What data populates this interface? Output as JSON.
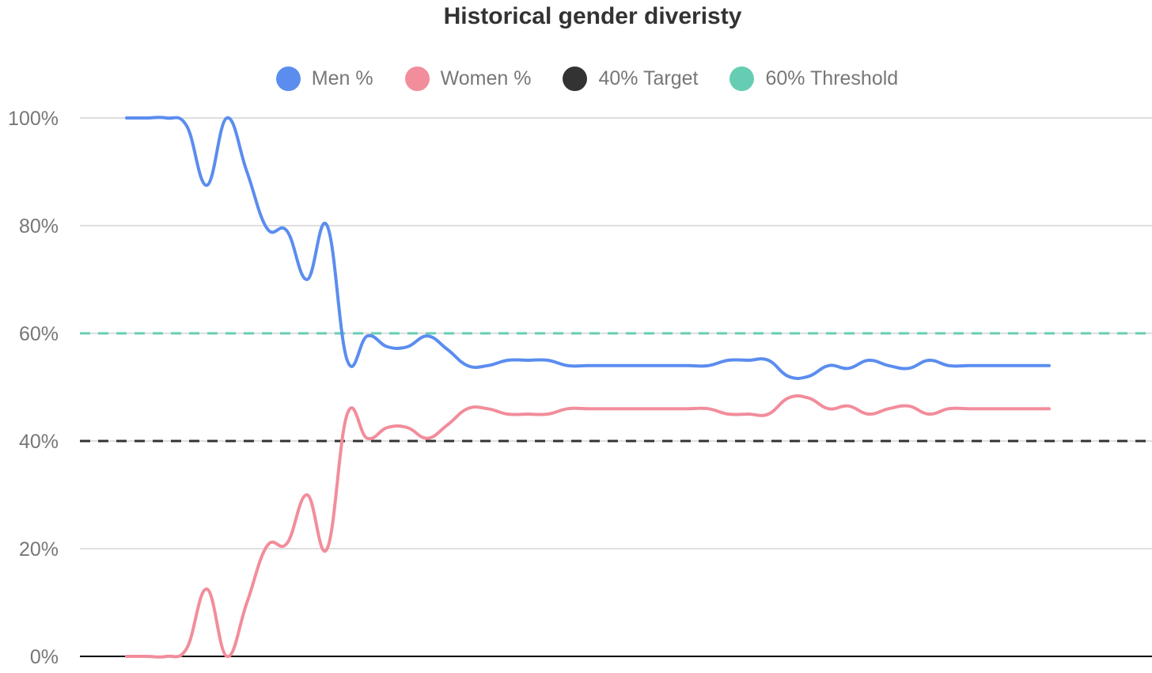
{
  "chart_data": {
    "type": "line",
    "title": "Historical gender diveristy",
    "xlabel": "",
    "ylabel": "",
    "ylim": [
      0,
      100
    ],
    "yticks": [
      0,
      20,
      40,
      60,
      80,
      100
    ],
    "ytick_labels": [
      "0%",
      "20%",
      "40%",
      "60%",
      "80%",
      "100%"
    ],
    "grid": true,
    "legend_position": "top-center",
    "x": [
      0,
      1,
      2,
      3,
      4,
      5,
      6,
      7,
      8,
      9,
      10,
      11,
      12,
      13,
      14,
      15,
      16,
      17,
      18,
      19,
      20,
      21,
      22,
      23,
      24,
      25,
      26,
      27,
      28,
      29,
      30,
      31,
      32,
      33,
      34,
      35,
      36,
      37,
      38,
      39,
      40,
      41,
      42,
      43,
      44,
      45,
      46
    ],
    "series": [
      {
        "name": "Men %",
        "color": "#5b8def",
        "values": [
          100,
          100,
          100,
          98.5,
          87.5,
          100,
          90,
          79.5,
          79,
          70,
          80,
          55,
          59.5,
          57.5,
          57.5,
          59.5,
          57,
          54,
          54,
          55,
          55,
          55,
          54,
          54,
          54,
          54,
          54,
          54,
          54,
          54,
          55,
          55,
          55,
          52,
          52,
          54,
          53.5,
          55,
          54,
          53.5,
          55,
          54,
          54,
          54,
          54,
          54,
          54
        ]
      },
      {
        "name": "Women %",
        "color": "#f28d9b",
        "values": [
          0,
          0,
          0,
          1.5,
          12.5,
          0,
          10,
          20.5,
          21,
          30,
          20,
          45,
          40.5,
          42.5,
          42.5,
          40.5,
          43,
          46,
          46,
          45,
          45,
          45,
          46,
          46,
          46,
          46,
          46,
          46,
          46,
          46,
          45,
          45,
          45,
          48,
          48,
          46,
          46.5,
          45,
          46,
          46.5,
          45,
          46,
          46,
          46,
          46,
          46,
          46
        ]
      },
      {
        "name": "40% Target",
        "color": "#333333",
        "constant": 40,
        "dashed": true
      },
      {
        "name": "60% Threshold",
        "color": "#66cdb3",
        "constant": 60,
        "dashed": true
      }
    ]
  }
}
